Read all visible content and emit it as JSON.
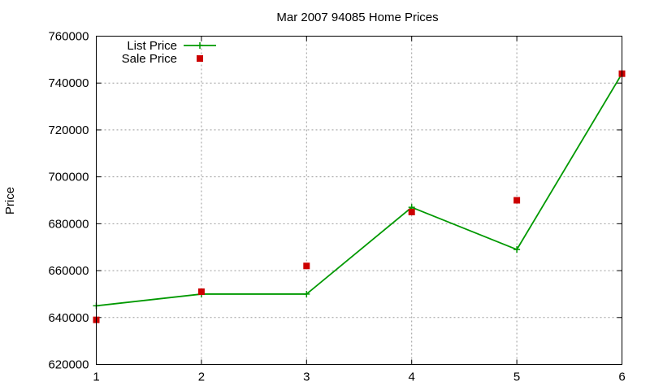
{
  "chart_data": {
    "type": "line",
    "title": "Mar 2007 94085 Home Prices",
    "xlabel": "",
    "ylabel": "Price",
    "x": [
      1,
      2,
      3,
      4,
      5,
      6
    ],
    "xlim": [
      1,
      6
    ],
    "ylim": [
      620000,
      760000
    ],
    "xticks": [
      "1",
      "2",
      "3",
      "4",
      "5",
      "6"
    ],
    "yticks": [
      "620000",
      "640000",
      "660000",
      "680000",
      "700000",
      "720000",
      "740000",
      "760000"
    ],
    "grid": true,
    "legend_position": "top-left",
    "series": [
      {
        "name": "List Price",
        "style": "line-with-plus-markers",
        "color": "#009900",
        "values": [
          645000,
          650000,
          650000,
          687000,
          669000,
          744000
        ]
      },
      {
        "name": "Sale Price",
        "style": "square-markers",
        "color": "#cc0000",
        "values": [
          639000,
          651000,
          662000,
          685000,
          690000,
          744000
        ]
      }
    ]
  }
}
